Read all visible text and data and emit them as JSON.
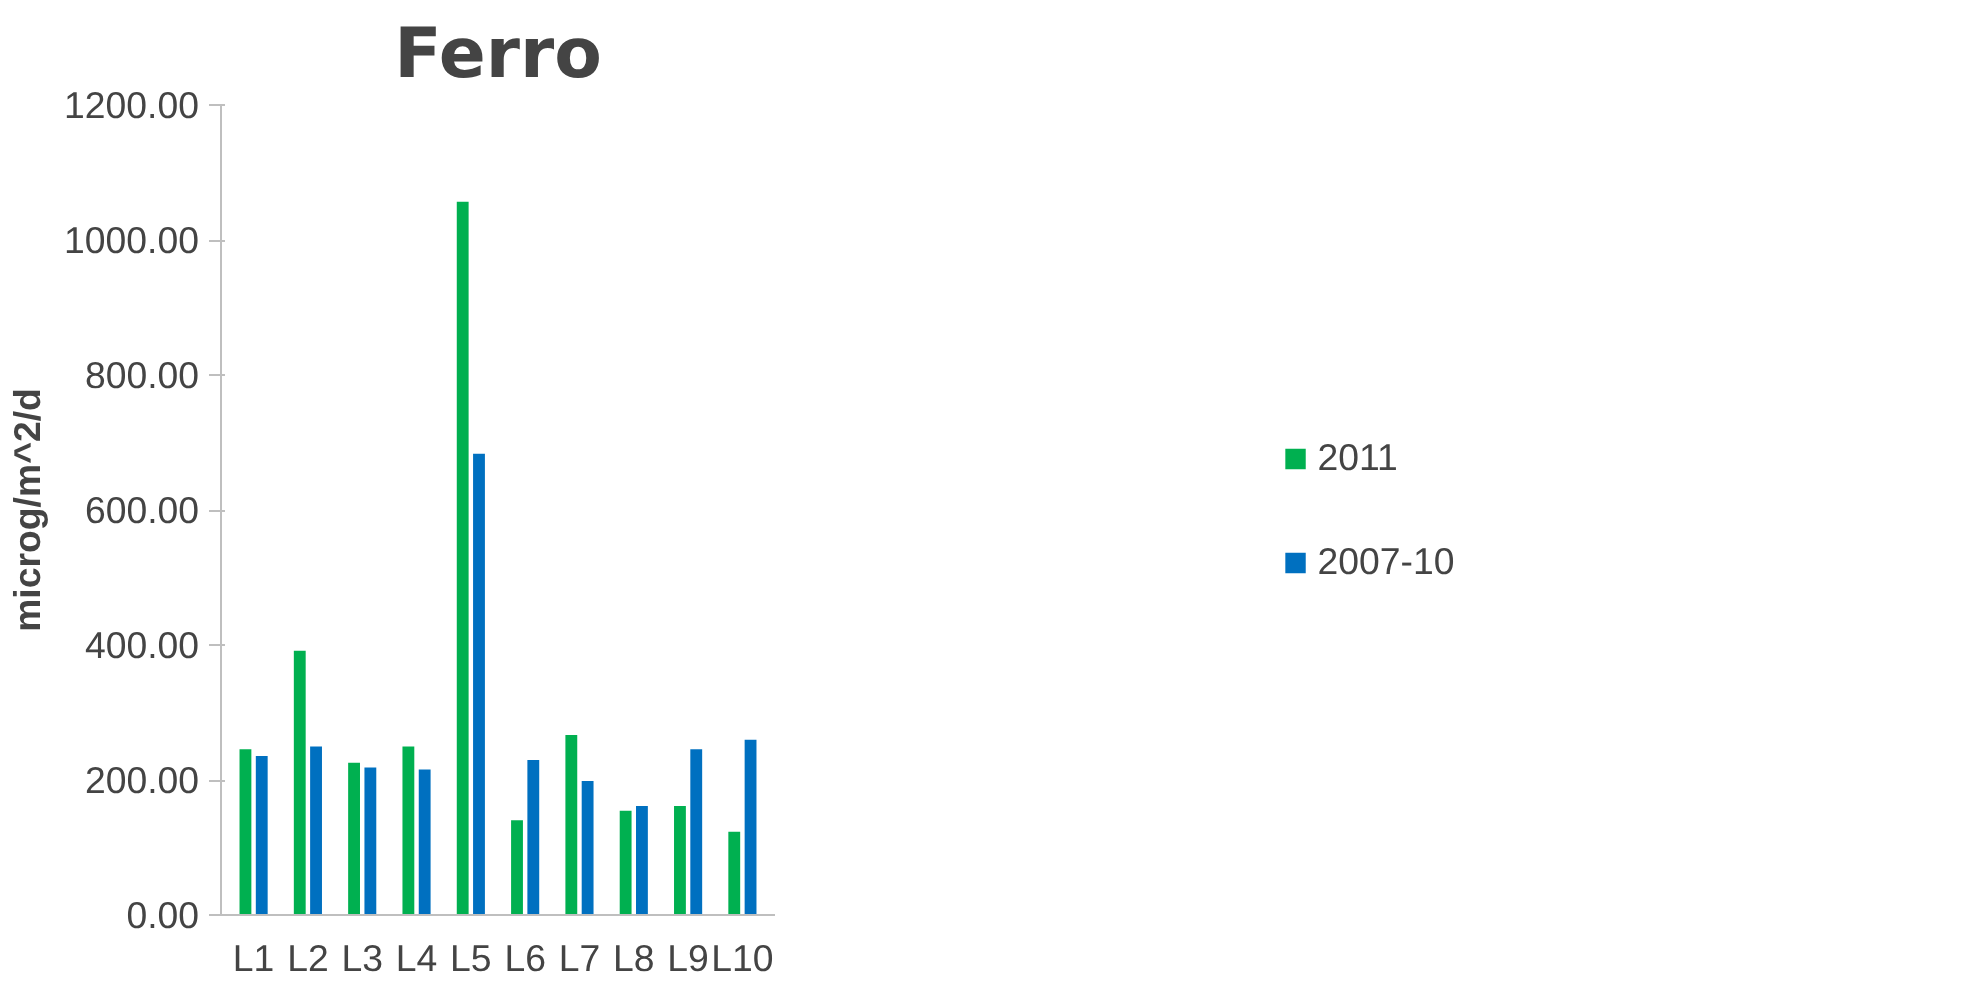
{
  "chart_data": {
    "type": "bar",
    "title": "Ferro",
    "ylabel": "microg/m^2/d",
    "categories": [
      "L1",
      "L2",
      "L3",
      "L4",
      "L5",
      "L6",
      "L7",
      "L8",
      "L9",
      "L10"
    ],
    "series": [
      {
        "name": "2011",
        "color": "#00b050",
        "values": [
          247,
          393,
          227,
          251,
          1058,
          142,
          268,
          156,
          163,
          125
        ]
      },
      {
        "name": "2007-10",
        "color": "#0070c0",
        "values": [
          237,
          251,
          220,
          217,
          685,
          231,
          200,
          163,
          247,
          261
        ]
      }
    ],
    "ylim": [
      0,
      1200
    ],
    "yticks": [
      {
        "value": 0,
        "label": "0.00"
      },
      {
        "value": 200,
        "label": "200.00"
      },
      {
        "value": 400,
        "label": "400.00"
      },
      {
        "value": 600,
        "label": "600.00"
      },
      {
        "value": 800,
        "label": "800.00"
      },
      {
        "value": 1000,
        "label": "1000.00"
      },
      {
        "value": 1200,
        "label": "1200.00"
      }
    ],
    "grid": false,
    "legend": "right"
  }
}
